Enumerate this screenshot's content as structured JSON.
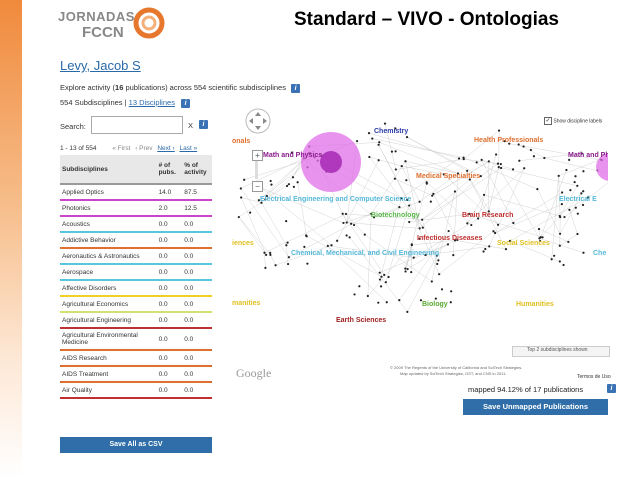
{
  "header": {
    "logo_line1": "JORNADAS",
    "logo_line2": "FCCN",
    "title": "Standard – VIVO - Ontologias"
  },
  "profile": {
    "name": "Levy, Jacob S",
    "explore_prefix": "Explore activity (",
    "pubs_count": "16",
    "explore_suffix": " publications) across 554 scientific subdisciplines",
    "subdisciplines_count": "554 Subdisciplines | ",
    "disciplines_link": "13 Disciplines",
    "search_label": "Search:",
    "search_value": "",
    "clear_label": "X"
  },
  "pager": {
    "range": "1 - 13 of 554",
    "first": "« First",
    "prev": "‹ Prev",
    "next": "Next ›",
    "last": "Last »"
  },
  "table": {
    "headers": [
      "Subdisciplines",
      "# of pubs.",
      "% of activity"
    ],
    "rows": [
      {
        "name": "Applied Optics",
        "pubs": "14.0",
        "pct": "87.5",
        "color": "#cc44cc"
      },
      {
        "name": "Photonics",
        "pubs": "2.0",
        "pct": "12.5",
        "color": "#cc44cc"
      },
      {
        "name": "Acoustics",
        "pubs": "0.0",
        "pct": "0.0",
        "color": "#55c8e0"
      },
      {
        "name": "Addictive Behavior",
        "pubs": "0.0",
        "pct": "0.0",
        "color": "#e07030"
      },
      {
        "name": "Aeronautics & Astronautics",
        "pubs": "0.0",
        "pct": "0.0",
        "color": "#55c8e0"
      },
      {
        "name": "Aerospace",
        "pubs": "0.0",
        "pct": "0.0",
        "color": "#55c8e0"
      },
      {
        "name": "Affective Disorders",
        "pubs": "0.0",
        "pct": "0.0",
        "color": "#f0d020"
      },
      {
        "name": "Agricultural Economics",
        "pubs": "0.0",
        "pct": "0.0",
        "color": "#d4e070"
      },
      {
        "name": "Agricultural Engineering",
        "pubs": "0.0",
        "pct": "0.0",
        "color": "#c03030"
      },
      {
        "name": "Agricultural Environmental Medicine",
        "pubs": "0.0",
        "pct": "0.0",
        "color": "#e07030"
      },
      {
        "name": "AIDS Research",
        "pubs": "0.0",
        "pct": "0.0",
        "color": "#e07030"
      },
      {
        "name": "AIDS Treatment",
        "pubs": "0.0",
        "pct": "0.0",
        "color": "#e07030"
      },
      {
        "name": "Air Quality",
        "pubs": "0.0",
        "pct": "0.0",
        "color": "#c03030"
      }
    ],
    "save_csv": "Save All as CSV"
  },
  "map": {
    "show_labels": "Show discipline labels",
    "labels": [
      {
        "text": "onals",
        "color": "#e07030"
      },
      {
        "text": "Chemistry",
        "color": "#2a3aa8"
      },
      {
        "text": "Health Professionals",
        "color": "#e07030"
      },
      {
        "text": "Math and Physics",
        "color": "#8a1a8a"
      },
      {
        "text": "Math and Ph",
        "color": "#8a1a8a"
      },
      {
        "text": "Medical Specialties",
        "color": "#e07030"
      },
      {
        "text": "Electrical Engineering and Computer Science",
        "color": "#55b8d8"
      },
      {
        "text": "Electrical E",
        "color": "#55b8d8"
      },
      {
        "text": "Biotechnology",
        "color": "#58b848"
      },
      {
        "text": "Brain Research",
        "color": "#c03030"
      },
      {
        "text": "iences",
        "color": "#e0c020"
      },
      {
        "text": "Infectious Diseases",
        "color": "#c03030"
      },
      {
        "text": "Social Sciences",
        "color": "#e0c020"
      },
      {
        "text": "Chemical, Mechanical, and Civil Engineering",
        "color": "#55b8d8"
      },
      {
        "text": "Che",
        "color": "#55b8d8"
      },
      {
        "text": "manities",
        "color": "#e0c020"
      },
      {
        "text": "Biology",
        "color": "#58a830"
      },
      {
        "text": "Humanities",
        "color": "#e0c020"
      },
      {
        "text": "Earth Sciences",
        "color": "#a02020"
      }
    ],
    "top_label": "Top 2 subdisciplines shown",
    "google": "Google",
    "copyright1": "© 2009 The Regents of the University of California and SciTech Strategies.",
    "copyright2": "Map updated by SciTech Strategies, OST, and CNS in 2011.",
    "terms": "Termos de Uso",
    "mapped": "mapped 94.12% of 17 publications",
    "save_unmapped": "Save Unmapped Publications"
  },
  "colors": {
    "accent": "#2f6ea8",
    "logo_orange": "#e8772e"
  }
}
